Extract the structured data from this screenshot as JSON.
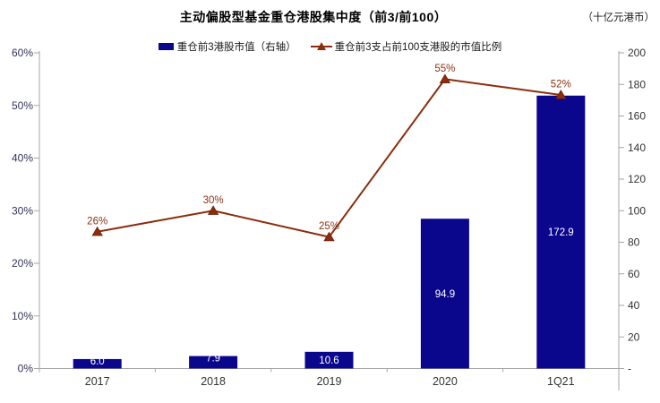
{
  "header": {
    "title": "主动偏股型基金重仓港股集中度（前3/前100）",
    "unit_label": "（十亿元港币）"
  },
  "legend": {
    "items": [
      {
        "label": "重仓前3港股市值（右轴）",
        "marker": "bar-swatch"
      },
      {
        "label": "重仓前3支占前100支港股的市值比例",
        "marker": "line-triangle-marker"
      }
    ]
  },
  "colors": {
    "bar": "#0A078C",
    "line": "#8B2D0E",
    "marker_edge": "#6E2007",
    "data_label_line": "#8B3213",
    "data_label_bar": "#ffffff",
    "axis_line": "#A6A6A6",
    "tick_label_left": "#33335A",
    "tick_label_right": "#333333",
    "x_label": "#333333"
  },
  "chart_data": {
    "type": "bar+line combo",
    "title": "主动偏股型基金重仓港股集中度（前3/前100）",
    "unit": "（十亿元港币）",
    "categories": [
      "2017",
      "2018",
      "2019",
      "2020",
      "1Q21"
    ],
    "series": [
      {
        "name": "重仓前3港股市值（右轴）",
        "type": "bar",
        "axis": "right",
        "values": [
          6.0,
          7.9,
          10.6,
          94.9,
          172.9
        ],
        "labels": [
          "6.0",
          "7.9",
          "10.6",
          "94.9",
          "172.9"
        ]
      },
      {
        "name": "重仓前3支占前100支港股的市值比例",
        "type": "line",
        "axis": "left",
        "values": [
          26,
          30,
          25,
          55,
          52
        ],
        "labels": [
          "26%",
          "30%",
          "25%",
          "55%",
          "52%"
        ]
      }
    ],
    "left_axis": {
      "min": 0,
      "max": 60,
      "ticks": [
        "0%",
        "10%",
        "20%",
        "30%",
        "40%",
        "50%",
        "60%"
      ]
    },
    "right_axis": {
      "min": 0,
      "max": 200,
      "ticks": [
        "-",
        "20",
        "40",
        "60",
        "80",
        "100",
        "120",
        "140",
        "160",
        "180",
        "200"
      ]
    },
    "grid": false,
    "legend_position": "top-center"
  }
}
